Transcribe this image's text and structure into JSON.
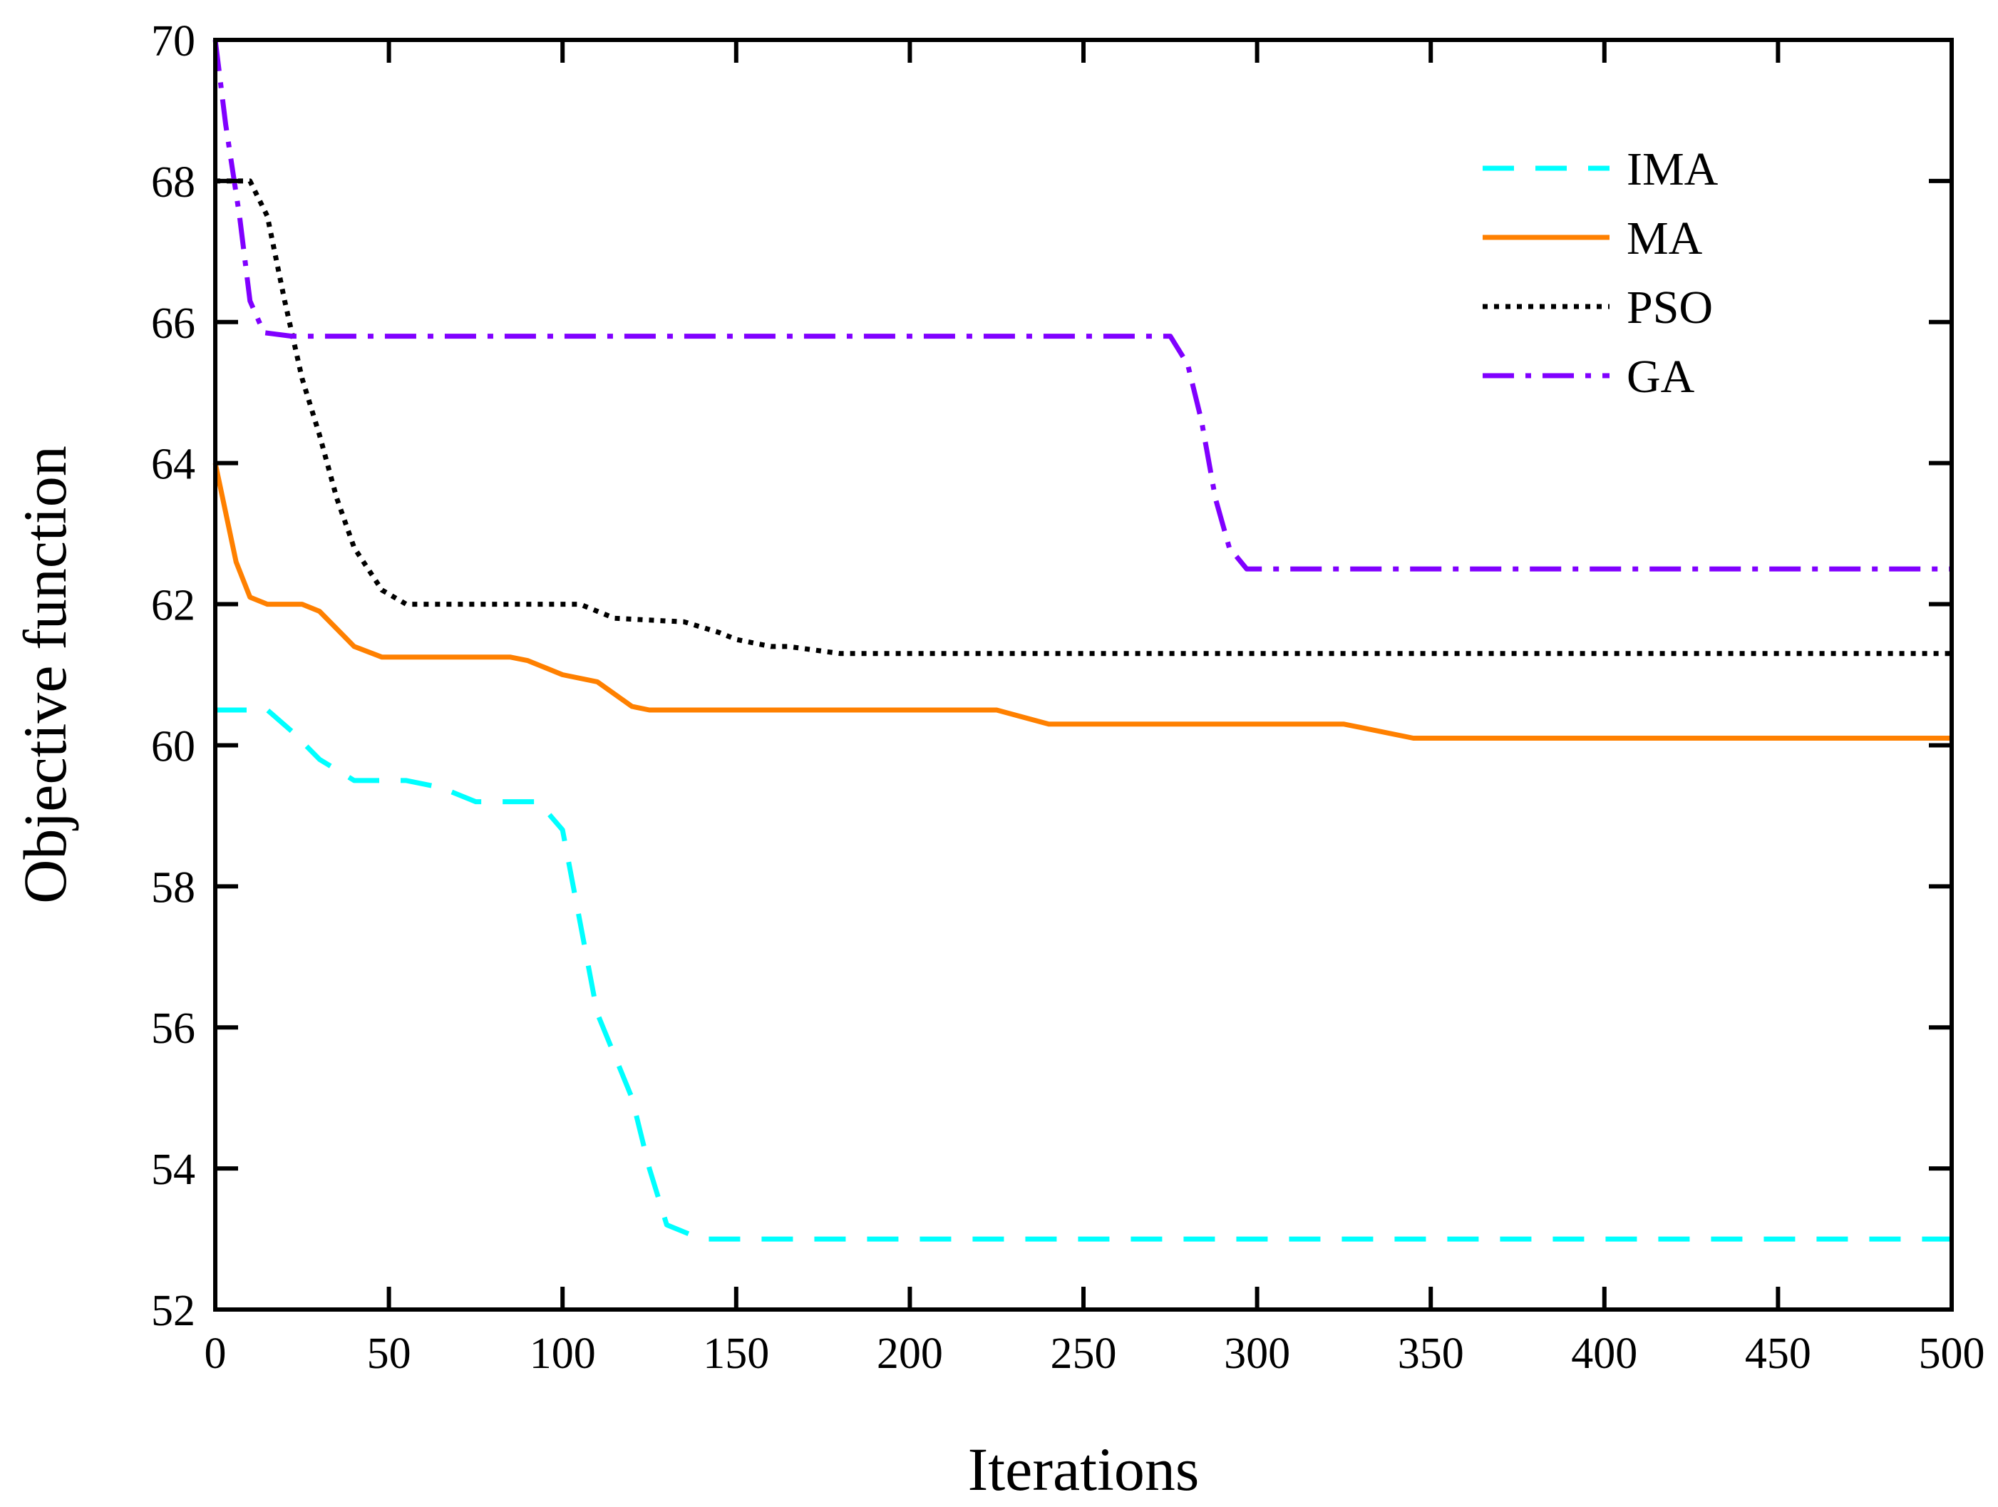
{
  "chart_data": {
    "type": "line",
    "title": "",
    "xlabel": "Iterations",
    "ylabel": "Objective function",
    "xlim": [
      0,
      500
    ],
    "ylim": [
      52,
      70
    ],
    "xticks": [
      0,
      50,
      100,
      150,
      200,
      250,
      300,
      350,
      400,
      450,
      500
    ],
    "yticks": [
      52,
      54,
      56,
      58,
      60,
      62,
      64,
      66,
      68,
      70
    ],
    "grid": false,
    "legend_position": "top-right",
    "series": [
      {
        "name": "IMA",
        "color": "#00FFFF",
        "style": "dashed",
        "points": [
          [
            0,
            60.5
          ],
          [
            15,
            60.5
          ],
          [
            22,
            60.2
          ],
          [
            30,
            59.8
          ],
          [
            40,
            59.5
          ],
          [
            55,
            59.5
          ],
          [
            65,
            59.4
          ],
          [
            75,
            59.2
          ],
          [
            93,
            59.2
          ],
          [
            100,
            58.8
          ],
          [
            105,
            57.5
          ],
          [
            110,
            56.2
          ],
          [
            115,
            55.6
          ],
          [
            120,
            55.0
          ],
          [
            125,
            54.0
          ],
          [
            130,
            53.2
          ],
          [
            140,
            53.0
          ],
          [
            500,
            53.0
          ]
        ]
      },
      {
        "name": "MA",
        "color": "#FF8000",
        "style": "solid",
        "points": [
          [
            0,
            64.0
          ],
          [
            3,
            63.3
          ],
          [
            6,
            62.6
          ],
          [
            10,
            62.1
          ],
          [
            15,
            62.0
          ],
          [
            25,
            62.0
          ],
          [
            30,
            61.9
          ],
          [
            40,
            61.4
          ],
          [
            48,
            61.25
          ],
          [
            85,
            61.25
          ],
          [
            90,
            61.2
          ],
          [
            100,
            61.0
          ],
          [
            110,
            60.9
          ],
          [
            120,
            60.55
          ],
          [
            125,
            60.5
          ],
          [
            225,
            60.5
          ],
          [
            240,
            60.3
          ],
          [
            325,
            60.3
          ],
          [
            330,
            60.25
          ],
          [
            345,
            60.1
          ],
          [
            500,
            60.1
          ]
        ]
      },
      {
        "name": "PSO",
        "color": "#000000",
        "style": "dotted",
        "points": [
          [
            0,
            68.0
          ],
          [
            10,
            68.0
          ],
          [
            15,
            67.5
          ],
          [
            20,
            66.3
          ],
          [
            25,
            65.2
          ],
          [
            30,
            64.4
          ],
          [
            35,
            63.5
          ],
          [
            40,
            62.8
          ],
          [
            48,
            62.2
          ],
          [
            55,
            62.0
          ],
          [
            105,
            62.0
          ],
          [
            115,
            61.8
          ],
          [
            135,
            61.75
          ],
          [
            145,
            61.6
          ],
          [
            150,
            61.5
          ],
          [
            160,
            61.4
          ],
          [
            165,
            61.4
          ],
          [
            180,
            61.3
          ],
          [
            500,
            61.3
          ]
        ]
      },
      {
        "name": "GA",
        "color": "#8000FF",
        "style": "dashdot",
        "points": [
          [
            0,
            70.0
          ],
          [
            3,
            68.8
          ],
          [
            7,
            67.5
          ],
          [
            10,
            66.3
          ],
          [
            14,
            65.85
          ],
          [
            22,
            65.8
          ],
          [
            275,
            65.8
          ],
          [
            280,
            65.4
          ],
          [
            284,
            64.6
          ],
          [
            288,
            63.5
          ],
          [
            292,
            62.8
          ],
          [
            297,
            62.5
          ],
          [
            500,
            62.5
          ]
        ]
      }
    ]
  }
}
